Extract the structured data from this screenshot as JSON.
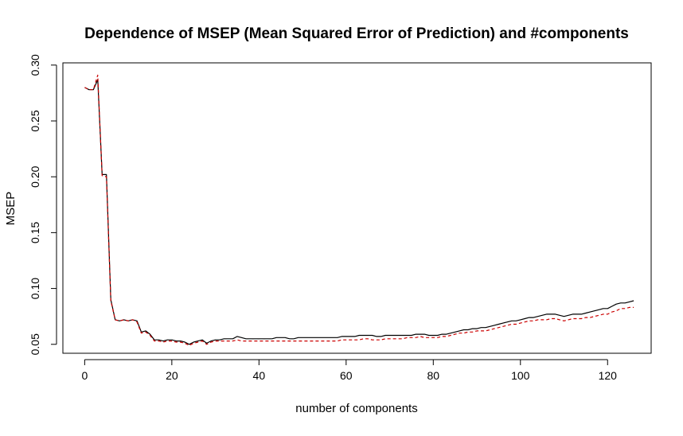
{
  "chart_data": {
    "type": "line",
    "title": "Dependence of MSEP (Mean Squared Error of Prediction) and #components",
    "xlabel": "number of components",
    "ylabel": "MSEP",
    "xlim": [
      -5,
      130
    ],
    "ylim": [
      0.042,
      0.302
    ],
    "x_ticks": [
      0,
      20,
      40,
      60,
      80,
      100,
      120
    ],
    "x_tick_labels": [
      "0",
      "20",
      "40",
      "60",
      "80",
      "100",
      "120"
    ],
    "y_ticks": [
      0.05,
      0.1,
      0.15,
      0.2,
      0.25,
      0.3
    ],
    "y_tick_labels": [
      "0.05",
      "0.10",
      "0.15",
      "0.20",
      "0.25",
      "0.30"
    ],
    "grid": false,
    "legend": "none",
    "series": [
      {
        "color": "#000000",
        "dash": "solid",
        "x": [
          0,
          1,
          2,
          3,
          4,
          5,
          6,
          7,
          8,
          9,
          10,
          11,
          12,
          13,
          14,
          15,
          16,
          17,
          18,
          19,
          20,
          21,
          22,
          23,
          24,
          25,
          26,
          27,
          28,
          29,
          30,
          31,
          32,
          33,
          34,
          35,
          36,
          37,
          38,
          39,
          40,
          41,
          42,
          43,
          44,
          45,
          46,
          47,
          48,
          49,
          50,
          51,
          52,
          53,
          54,
          55,
          56,
          57,
          58,
          59,
          60,
          61,
          62,
          63,
          64,
          65,
          66,
          67,
          68,
          69,
          70,
          71,
          72,
          73,
          74,
          75,
          76,
          77,
          78,
          79,
          80,
          81,
          82,
          83,
          84,
          85,
          86,
          87,
          88,
          89,
          90,
          91,
          92,
          93,
          94,
          95,
          96,
          97,
          98,
          99,
          100,
          101,
          102,
          103,
          104,
          105,
          106,
          107,
          108,
          109,
          110,
          111,
          112,
          113,
          114,
          115,
          116,
          117,
          118,
          119,
          120,
          121,
          122,
          123,
          124,
          125,
          126
        ],
        "values": [
          0.28,
          0.278,
          0.278,
          0.287,
          0.202,
          0.202,
          0.09,
          0.072,
          0.071,
          0.072,
          0.071,
          0.072,
          0.071,
          0.061,
          0.062,
          0.059,
          0.054,
          0.054,
          0.053,
          0.054,
          0.054,
          0.053,
          0.053,
          0.052,
          0.05,
          0.052,
          0.053,
          0.054,
          0.051,
          0.053,
          0.054,
          0.054,
          0.055,
          0.055,
          0.055,
          0.057,
          0.056,
          0.055,
          0.055,
          0.055,
          0.055,
          0.055,
          0.055,
          0.055,
          0.056,
          0.056,
          0.056,
          0.055,
          0.055,
          0.056,
          0.056,
          0.056,
          0.056,
          0.056,
          0.056,
          0.056,
          0.056,
          0.056,
          0.056,
          0.057,
          0.057,
          0.057,
          0.057,
          0.058,
          0.058,
          0.058,
          0.058,
          0.057,
          0.057,
          0.058,
          0.058,
          0.058,
          0.058,
          0.058,
          0.058,
          0.058,
          0.059,
          0.059,
          0.059,
          0.058,
          0.058,
          0.058,
          0.059,
          0.059,
          0.06,
          0.061,
          0.062,
          0.063,
          0.063,
          0.064,
          0.064,
          0.065,
          0.065,
          0.066,
          0.067,
          0.068,
          0.069,
          0.07,
          0.071,
          0.071,
          0.072,
          0.073,
          0.074,
          0.074,
          0.075,
          0.076,
          0.077,
          0.077,
          0.077,
          0.076,
          0.075,
          0.076,
          0.077,
          0.077,
          0.077,
          0.078,
          0.079,
          0.08,
          0.081,
          0.082,
          0.082,
          0.084,
          0.086,
          0.087,
          0.087,
          0.088,
          0.089
        ]
      },
      {
        "color": "#cc0000",
        "dash": "dashed",
        "x": [
          0,
          1,
          2,
          3,
          4,
          5,
          6,
          7,
          8,
          9,
          10,
          11,
          12,
          13,
          14,
          15,
          16,
          17,
          18,
          19,
          20,
          21,
          22,
          23,
          24,
          25,
          26,
          27,
          28,
          29,
          30,
          31,
          32,
          33,
          34,
          35,
          36,
          37,
          38,
          39,
          40,
          41,
          42,
          43,
          44,
          45,
          46,
          47,
          48,
          49,
          50,
          51,
          52,
          53,
          54,
          55,
          56,
          57,
          58,
          59,
          60,
          61,
          62,
          63,
          64,
          65,
          66,
          67,
          68,
          69,
          70,
          71,
          72,
          73,
          74,
          75,
          76,
          77,
          78,
          79,
          80,
          81,
          82,
          83,
          84,
          85,
          86,
          87,
          88,
          89,
          90,
          91,
          92,
          93,
          94,
          95,
          96,
          97,
          98,
          99,
          100,
          101,
          102,
          103,
          104,
          105,
          106,
          107,
          108,
          109,
          110,
          111,
          112,
          113,
          114,
          115,
          116,
          117,
          118,
          119,
          120,
          121,
          122,
          123,
          124,
          125,
          126
        ],
        "values": [
          0.28,
          0.278,
          0.278,
          0.291,
          0.201,
          0.2,
          0.089,
          0.072,
          0.071,
          0.072,
          0.071,
          0.072,
          0.07,
          0.06,
          0.061,
          0.058,
          0.053,
          0.053,
          0.052,
          0.053,
          0.053,
          0.052,
          0.052,
          0.051,
          0.049,
          0.051,
          0.052,
          0.053,
          0.05,
          0.052,
          0.053,
          0.053,
          0.053,
          0.053,
          0.053,
          0.054,
          0.053,
          0.053,
          0.053,
          0.053,
          0.053,
          0.053,
          0.053,
          0.053,
          0.053,
          0.053,
          0.053,
          0.053,
          0.053,
          0.053,
          0.053,
          0.053,
          0.053,
          0.053,
          0.053,
          0.053,
          0.053,
          0.053,
          0.053,
          0.054,
          0.054,
          0.054,
          0.054,
          0.054,
          0.055,
          0.055,
          0.054,
          0.054,
          0.054,
          0.055,
          0.055,
          0.055,
          0.055,
          0.055,
          0.056,
          0.056,
          0.056,
          0.057,
          0.056,
          0.056,
          0.056,
          0.056,
          0.057,
          0.057,
          0.058,
          0.059,
          0.06,
          0.06,
          0.061,
          0.061,
          0.062,
          0.062,
          0.062,
          0.063,
          0.064,
          0.065,
          0.066,
          0.067,
          0.068,
          0.068,
          0.069,
          0.07,
          0.071,
          0.071,
          0.072,
          0.072,
          0.072,
          0.073,
          0.073,
          0.072,
          0.071,
          0.072,
          0.073,
          0.073,
          0.073,
          0.074,
          0.074,
          0.075,
          0.076,
          0.077,
          0.077,
          0.079,
          0.08,
          0.082,
          0.082,
          0.083,
          0.083
        ]
      }
    ]
  }
}
